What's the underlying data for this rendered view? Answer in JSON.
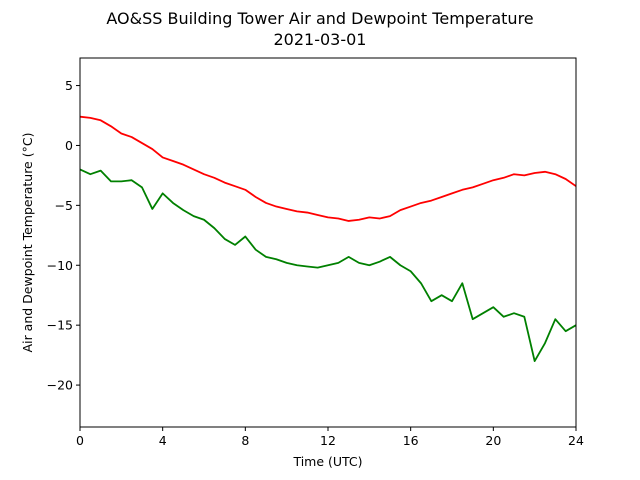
{
  "chart_data": {
    "type": "line",
    "title": "AO&SS Building Tower Air and Dewpoint Temperature",
    "subtitle": "2021-03-01",
    "xlabel": "Time (UTC)",
    "ylabel": "Air and Dewpoint Temperature (°C)",
    "xlim": [
      0,
      24
    ],
    "ylim": [
      -23.5,
      7.3
    ],
    "xticks": [
      0,
      4,
      8,
      12,
      16,
      20,
      24
    ],
    "yticks": [
      5,
      0,
      -5,
      -10,
      -15,
      -20
    ],
    "grid": false,
    "series": [
      {
        "color": "#ff0000",
        "x": [
          0,
          0.5,
          1,
          1.5,
          2,
          2.5,
          3,
          3.5,
          4,
          4.5,
          5,
          5.5,
          6,
          6.5,
          7,
          7.5,
          8,
          8.5,
          9,
          9.5,
          10,
          10.5,
          11,
          11.5,
          12,
          12.5,
          13,
          13.5,
          14,
          14.5,
          15,
          15.5,
          16,
          16.5,
          17,
          17.5,
          18,
          18.5,
          19,
          19.5,
          20,
          20.5,
          21,
          21.5,
          22,
          22.5,
          23,
          23.5,
          24
        ],
        "y": [
          2.4,
          2.3,
          2.1,
          1.6,
          1.0,
          0.7,
          0.2,
          -0.3,
          -1.0,
          -1.3,
          -1.6,
          -2.0,
          -2.4,
          -2.7,
          -3.1,
          -3.4,
          -3.7,
          -4.3,
          -4.8,
          -5.1,
          -5.3,
          -5.5,
          -5.6,
          -5.8,
          -6.0,
          -6.1,
          -6.3,
          -6.2,
          -6.0,
          -6.1,
          -5.9,
          -5.4,
          -5.1,
          -4.8,
          -4.6,
          -4.3,
          -4.0,
          -3.7,
          -3.5,
          -3.2,
          -2.9,
          -2.7,
          -2.4,
          -2.5,
          -2.3,
          -2.2,
          -2.4,
          -2.8,
          -3.4
        ]
      },
      {
        "color": "#008000",
        "x": [
          0,
          0.5,
          1,
          1.5,
          2,
          2.5,
          3,
          3.5,
          4,
          4.5,
          5,
          5.5,
          6,
          6.5,
          7,
          7.5,
          8,
          8.5,
          9,
          9.5,
          10,
          10.5,
          11,
          11.5,
          12,
          12.5,
          13,
          13.5,
          14,
          14.5,
          15,
          15.5,
          16,
          16.5,
          17,
          17.5,
          18,
          18.5,
          19,
          19.5,
          20,
          20.5,
          21,
          21.5,
          22,
          22.5,
          23,
          23.5,
          24
        ],
        "y": [
          -2.0,
          -2.4,
          -2.1,
          -3.0,
          -3.0,
          -2.9,
          -3.5,
          -5.3,
          -4.0,
          -4.8,
          -5.4,
          -5.9,
          -6.2,
          -6.9,
          -7.8,
          -8.3,
          -7.6,
          -8.7,
          -9.3,
          -9.5,
          -9.8,
          -10.0,
          -10.1,
          -10.2,
          -10.0,
          -9.8,
          -9.3,
          -9.8,
          -10.0,
          -9.7,
          -9.3,
          -10.0,
          -10.5,
          -11.5,
          -13.0,
          -12.5,
          -13.0,
          -11.5,
          -14.5,
          -14.0,
          -13.5,
          -14.3,
          -14.0,
          -14.3,
          -18.0,
          -16.5,
          -14.5,
          -15.5,
          -15.0
        ]
      }
    ]
  }
}
